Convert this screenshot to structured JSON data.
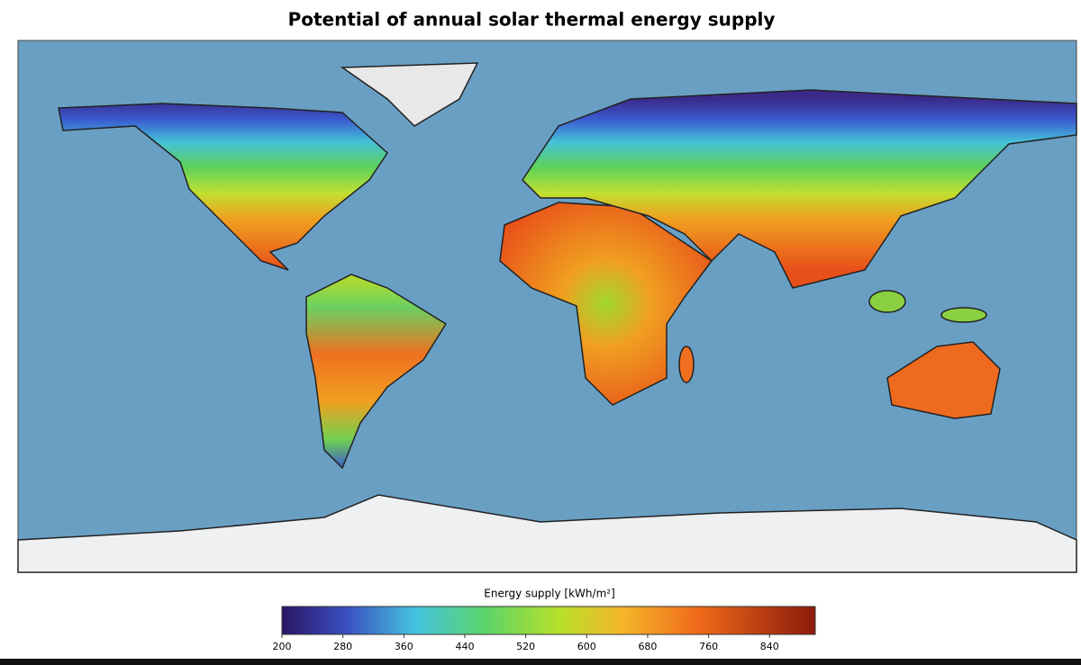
{
  "title": "Potential of annual solar thermal energy supply",
  "colorbar": {
    "label": "Energy supply [kWh/m²]",
    "lim": [
      200,
      900
    ],
    "ticks": [
      200,
      280,
      360,
      440,
      520,
      600,
      680,
      760,
      840
    ]
  }
}
